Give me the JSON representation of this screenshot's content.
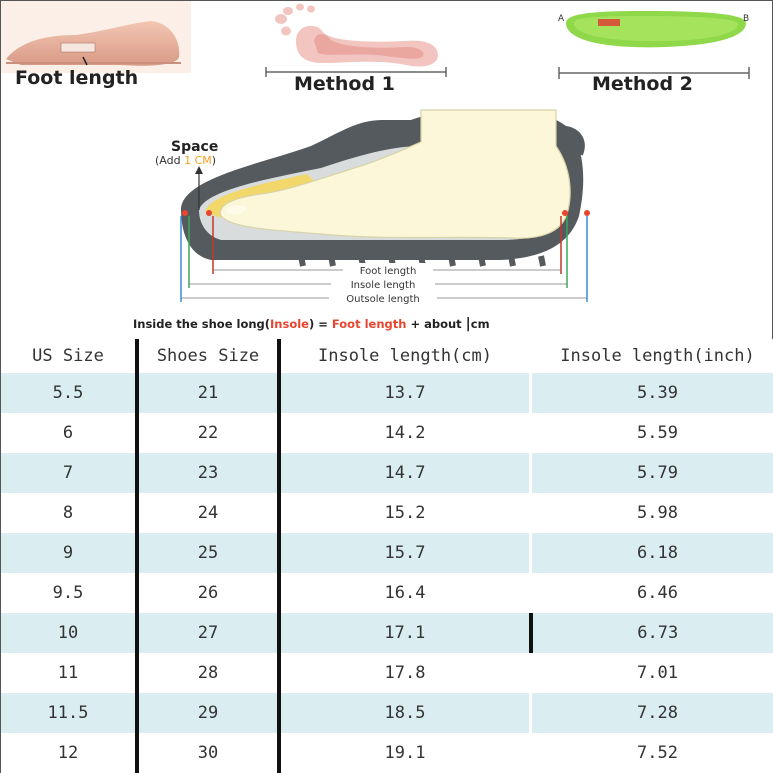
{
  "guide": {
    "foot_length_label": "Foot length",
    "method1_label": "Method 1",
    "method2_label": "Method 2",
    "insole_point_a": "A",
    "insole_point_b": "B"
  },
  "diagram": {
    "space_label": "Space",
    "add_prefix": "(Add ",
    "add_value": "1 CM",
    "add_suffix": ")",
    "foot_length_label": "Foot length",
    "insole_length_label": "Insole length",
    "outsole_length_label": "Outsole length",
    "formula": {
      "part1": "Inside the shoe long(",
      "insole": "Insole",
      "part2": ") = ",
      "foot_length": "Foot length",
      "part3": " + about ",
      "bar": "|",
      "unit": "cm"
    }
  },
  "colors": {
    "accent_red": "#e8452f",
    "accent_orange": "#f0a020",
    "row_shade": "#daeef2",
    "insole_green": "#8fd84a"
  },
  "table": {
    "headers": [
      "US Size",
      "Shoes Size",
      "Insole length(cm)",
      "Insole length(inch)"
    ],
    "rows": [
      [
        "5.5",
        "21",
        "13.7",
        "5.39"
      ],
      [
        "6",
        "22",
        "14.2",
        "5.59"
      ],
      [
        "7",
        "23",
        "14.7",
        "5.79"
      ],
      [
        "8",
        "24",
        "15.2",
        "5.98"
      ],
      [
        "9",
        "25",
        "15.7",
        "6.18"
      ],
      [
        "9.5",
        "26",
        "16.4",
        "6.46"
      ],
      [
        "10",
        "27",
        "17.1",
        "6.73"
      ],
      [
        "11",
        "28",
        "17.8",
        "7.01"
      ],
      [
        "11.5",
        "29",
        "18.5",
        "7.28"
      ],
      [
        "12",
        "30",
        "19.1",
        "7.52"
      ]
    ]
  }
}
